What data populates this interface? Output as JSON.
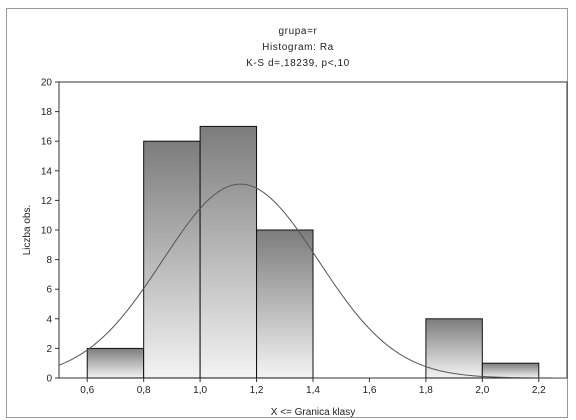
{
  "chart_data": {
    "type": "bar",
    "subtype": "histogram",
    "title_lines": [
      "grupa=r",
      "Histogram: Ra",
      "K-S d=,18239, p<,10"
    ],
    "xlabel": "X <= Granica klasy",
    "ylabel": "Liczba obs.",
    "xlim": [
      0.5,
      2.3
    ],
    "ylim": [
      0,
      20
    ],
    "x_ticks": [
      0.6,
      0.8,
      1.0,
      1.2,
      1.4,
      1.6,
      1.8,
      2.0,
      2.2
    ],
    "x_tick_labels": [
      "0,6",
      "0,8",
      "1,0",
      "1,2",
      "1,4",
      "1,6",
      "1,8",
      "2,0",
      "2,2"
    ],
    "y_ticks": [
      0,
      2,
      4,
      6,
      8,
      10,
      12,
      14,
      16,
      18,
      20
    ],
    "y_tick_labels": [
      "0",
      "2",
      "4",
      "6",
      "8",
      "10",
      "12",
      "14",
      "16",
      "18",
      "20"
    ],
    "bins": [
      {
        "start": 0.6,
        "end": 0.8,
        "value": 2
      },
      {
        "start": 0.8,
        "end": 1.0,
        "value": 16
      },
      {
        "start": 1.0,
        "end": 1.2,
        "value": 17
      },
      {
        "start": 1.2,
        "end": 1.4,
        "value": 10
      },
      {
        "start": 1.4,
        "end": 1.6,
        "value": 0
      },
      {
        "start": 1.6,
        "end": 1.8,
        "value": 0
      },
      {
        "start": 1.8,
        "end": 2.0,
        "value": 4
      },
      {
        "start": 2.0,
        "end": 2.2,
        "value": 1
      }
    ],
    "normal_curve": {
      "mean": 1.143,
      "sd": 0.276,
      "peak": 13.1
    },
    "grid": false,
    "colors": {
      "bar_top": "#7c7c7c",
      "bar_bottom": "#f3f3f3",
      "bar_stroke": "#111111",
      "curve": "#555555",
      "axis": "#333333"
    }
  }
}
